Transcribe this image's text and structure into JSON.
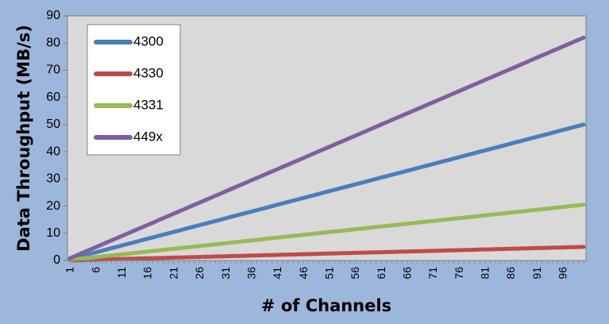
{
  "chart_data": {
    "type": "line",
    "title": "",
    "xlabel": "# of Channels",
    "ylabel": "Data Throughput (MB/s)",
    "x_start": 1,
    "x_end": 100,
    "x_tick_labels": [
      "1",
      "6",
      "11",
      "16",
      "21",
      "26",
      "31",
      "36",
      "41",
      "46",
      "51",
      "56",
      "61",
      "66",
      "71",
      "76",
      "81",
      "86",
      "91",
      "96"
    ],
    "ylim": [
      0,
      90
    ],
    "y_ticks": [
      0,
      10,
      20,
      30,
      40,
      50,
      60,
      70,
      80,
      90
    ],
    "grid": false,
    "legend_position": "top-left",
    "series": [
      {
        "name": "4300",
        "color": "#4A7EBB",
        "start": 0.5,
        "end": 50
      },
      {
        "name": "4330",
        "color": "#BE4B48",
        "start": 0.05,
        "end": 5
      },
      {
        "name": "4331",
        "color": "#98B954",
        "start": 0.2,
        "end": 20.5
      },
      {
        "name": "449x",
        "color": "#7D60A0",
        "start": 0.8,
        "end": 82
      }
    ]
  }
}
